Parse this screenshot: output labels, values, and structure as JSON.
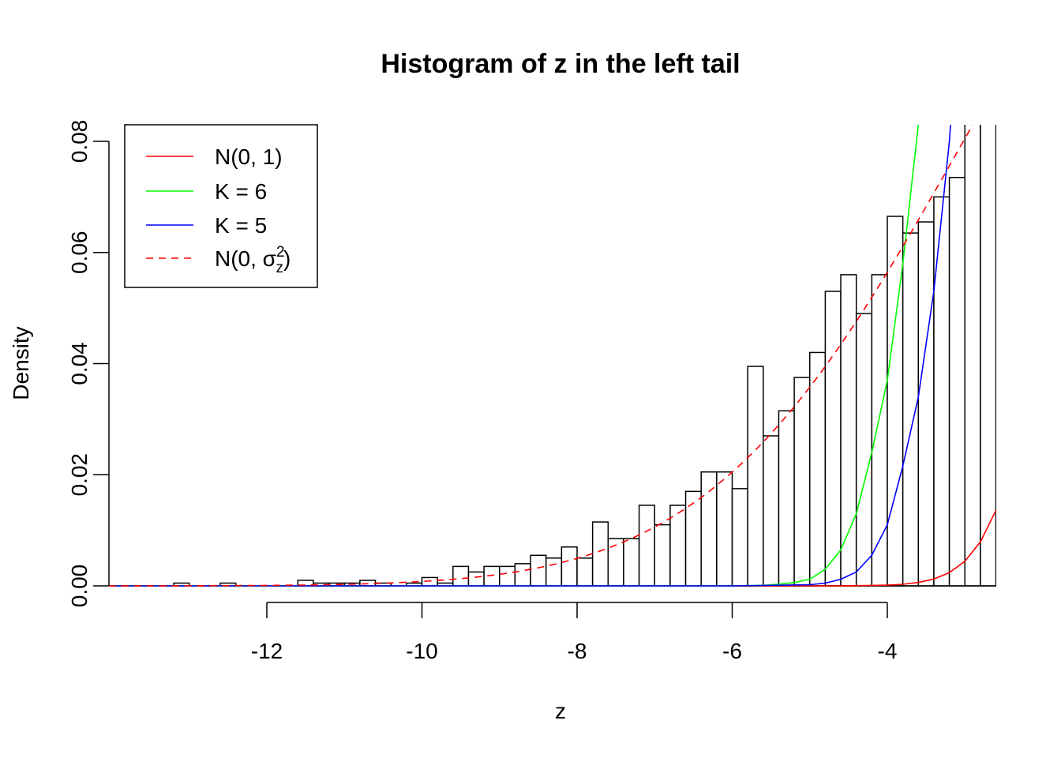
{
  "chart_data": {
    "type": "bar",
    "title": "Histogram of z in the left tail",
    "xlabel": "z",
    "ylabel": "Density",
    "xlim": [
      -14.04,
      -2.6
    ],
    "ylim": [
      0,
      0.0825
    ],
    "grid": false,
    "legend_position": "top-left",
    "x_ticks": [
      -12,
      -10,
      -8,
      -6,
      -4
    ],
    "x_tick_labels": [
      "-12",
      "-10",
      "-8",
      "-6",
      "-4"
    ],
    "y_ticks": [
      0,
      0.02,
      0.04,
      0.06,
      0.08
    ],
    "y_tick_labels": [
      "0.00",
      "0.02",
      "0.04",
      "0.06",
      "0.08"
    ],
    "histogram": {
      "bin_width": 0.2,
      "bin_starts": [
        -13.2,
        -12.6,
        -11.6,
        -11.4,
        -11.2,
        -11.0,
        -10.8,
        -10.6,
        -10.2,
        -10.0,
        -9.8,
        -9.6,
        -9.4,
        -9.2,
        -9.0,
        -8.8,
        -8.6,
        -8.4,
        -8.2,
        -8.0,
        -7.8,
        -7.6,
        -7.4,
        -7.2,
        -7.0,
        -6.8,
        -6.6,
        -6.4,
        -6.2,
        -6.0,
        -5.8,
        -5.6,
        -5.4,
        -5.2,
        -5.0,
        -4.8,
        -4.6,
        -4.4,
        -4.2,
        -4.0,
        -3.8,
        -3.6,
        -3.4,
        -3.2,
        -3.0,
        -2.8
      ],
      "densities": [
        0.0005,
        0.0005,
        0.001,
        0.0005,
        0.0005,
        0.0005,
        0.001,
        0.0005,
        0.0005,
        0.0015,
        0.0005,
        0.0035,
        0.0025,
        0.0035,
        0.0035,
        0.004,
        0.0055,
        0.005,
        0.007,
        0.005,
        0.0115,
        0.0085,
        0.0085,
        0.0145,
        0.011,
        0.0145,
        0.017,
        0.0205,
        0.0205,
        0.0175,
        0.0395,
        0.027,
        0.0315,
        0.0375,
        0.042,
        0.053,
        0.056,
        0.049,
        0.056,
        0.0665,
        0.0635,
        0.0655,
        0.07,
        0.0735,
        0.09,
        0.095
      ]
    },
    "series": [
      {
        "name": "N(0, 1)",
        "color": "#ff0000",
        "dash": false,
        "x": [
          -14,
          -6,
          -5,
          -4.5,
          -4,
          -3.8,
          -3.6,
          -3.4,
          -3.2,
          -3.0,
          -2.8,
          -2.6
        ],
        "y": [
          0,
          0,
          1.5e-06,
          1.6e-05,
          0.000134,
          0.00029,
          0.00061,
          0.00123,
          0.00238,
          0.00443,
          0.00792,
          0.0136
        ]
      },
      {
        "name": "K = 6",
        "color": "#00ff00",
        "dash": false,
        "x": [
          -14,
          -6,
          -5.6,
          -5.4,
          -5.2,
          -5.0,
          -4.8,
          -4.6,
          -4.4,
          -4.2,
          -4.0,
          -3.8,
          -3.6,
          -3.55
        ],
        "y": [
          0,
          0,
          0.0001,
          0.0003,
          0.0006,
          0.0012,
          0.003,
          0.0065,
          0.013,
          0.024,
          0.037,
          0.058,
          0.083,
          0.09
        ]
      },
      {
        "name": "K = 5",
        "color": "#0000ff",
        "dash": false,
        "x": [
          -14,
          -6,
          -5,
          -4.8,
          -4.6,
          -4.4,
          -4.2,
          -4.0,
          -3.8,
          -3.6,
          -3.4,
          -3.2,
          -3.15
        ],
        "y": [
          0,
          0,
          0.0002,
          0.0005,
          0.0012,
          0.0025,
          0.0055,
          0.011,
          0.0216,
          0.034,
          0.053,
          0.08,
          0.09
        ]
      },
      {
        "name": "N(0, σz²)",
        "color": "#ff0000",
        "dash": true,
        "sigma": 3.14
      }
    ],
    "legend": [
      {
        "label": "N(0, 1)"
      },
      {
        "label": "K = 6"
      },
      {
        "label": "K = 5"
      },
      {
        "label_base": "N(0, σ",
        "label_sub": "z",
        "label_sup": "2",
        "label_close": ")"
      }
    ]
  }
}
